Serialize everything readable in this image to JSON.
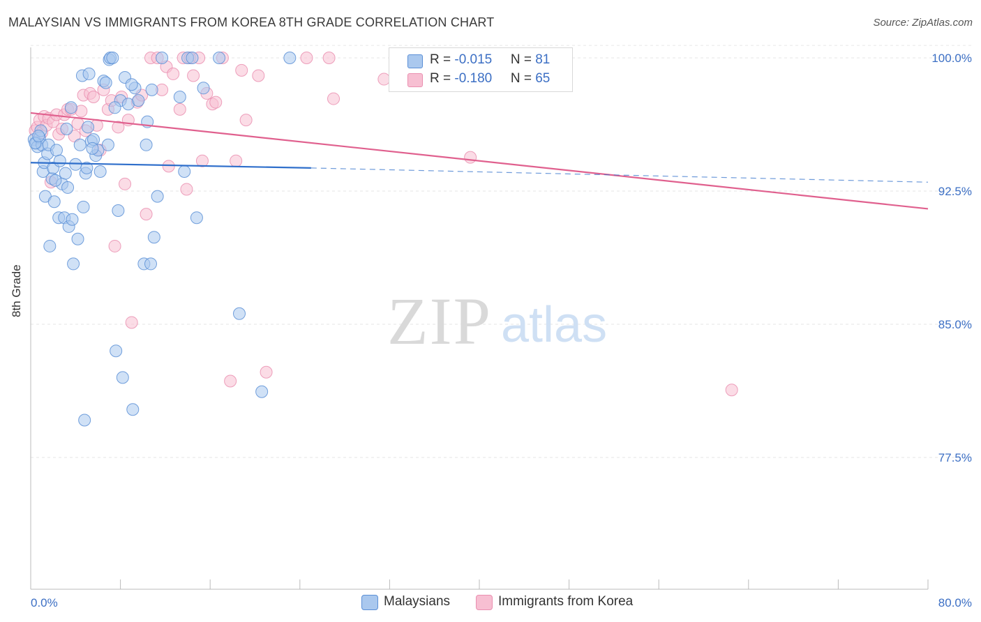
{
  "title": "MALAYSIAN VS IMMIGRANTS FROM KOREA 8TH GRADE CORRELATION CHART",
  "source": "Source: ZipAtlas.com",
  "watermark": {
    "zip": "ZIP",
    "atlas": "atlas"
  },
  "legend": {
    "rows": [
      {
        "r_label": "R = ",
        "r_value": "-0.015",
        "n_label": "N = ",
        "n_value": "81"
      },
      {
        "r_label": "R = ",
        "r_value": "-0.180",
        "n_label": "N = ",
        "n_value": "65"
      }
    ],
    "bottom": [
      "Malaysians",
      "Immigrants from Korea"
    ]
  },
  "colors": {
    "blue_fill": "#aac8ee",
    "blue_stroke": "#5b8fd6",
    "blue_line": "#2f6fcb",
    "pink_fill": "#f7bfd2",
    "pink_stroke": "#ea8fb0",
    "pink_line": "#e0608e",
    "axis_text": "#3c6fc4",
    "grid": "#e6e6e6"
  },
  "chart_data": {
    "type": "scatter",
    "title": "MALAYSIAN VS IMMIGRANTS FROM KOREA 8TH GRADE CORRELATION CHART",
    "xlabel": "",
    "ylabel": "8th Grade",
    "xlim": [
      0,
      80
    ],
    "ylim": [
      71.0,
      101.5
    ],
    "x_tick_labels": [
      "0.0%",
      "80.0%"
    ],
    "y_ticks": [
      77.5,
      85.0,
      92.5,
      100.0
    ],
    "y_tick_labels": [
      "77.5%",
      "85.0%",
      "92.5%",
      "100.0%"
    ],
    "grid": "horizontal dashed",
    "legend_position": "top-center",
    "series": [
      {
        "name": "Malaysians",
        "r": -0.015,
        "n": 81,
        "trend": {
          "x_solid": [
            0,
            25
          ],
          "y_solid": [
            94.1,
            93.8
          ],
          "x_dashed": [
            25,
            80
          ],
          "y_dashed": [
            93.8,
            93.0
          ]
        },
        "points": [
          [
            0.3,
            95.4
          ],
          [
            0.5,
            95.2
          ],
          [
            0.6,
            95.0
          ],
          [
            0.8,
            95.5
          ],
          [
            0.9,
            95.9
          ],
          [
            1.0,
            95.1
          ],
          [
            1.1,
            93.6
          ],
          [
            1.2,
            94.1
          ],
          [
            1.3,
            92.2
          ],
          [
            1.5,
            94.6
          ],
          [
            1.6,
            95.1
          ],
          [
            1.7,
            89.4
          ],
          [
            1.9,
            93.2
          ],
          [
            2.0,
            93.8
          ],
          [
            2.1,
            91.9
          ],
          [
            2.3,
            94.8
          ],
          [
            2.5,
            91.0
          ],
          [
            2.6,
            94.2
          ],
          [
            2.8,
            92.9
          ],
          [
            3.0,
            91.0
          ],
          [
            3.1,
            93.5
          ],
          [
            3.2,
            96.0
          ],
          [
            3.3,
            92.7
          ],
          [
            3.4,
            90.5
          ],
          [
            3.6,
            97.2
          ],
          [
            3.7,
            90.9
          ],
          [
            3.8,
            88.4
          ],
          [
            4.0,
            94.0
          ],
          [
            4.2,
            89.8
          ],
          [
            4.4,
            95.1
          ],
          [
            4.6,
            99.0
          ],
          [
            4.7,
            91.6
          ],
          [
            4.9,
            93.5
          ],
          [
            5.0,
            93.8
          ],
          [
            5.1,
            96.1
          ],
          [
            5.2,
            99.1
          ],
          [
            5.4,
            95.3
          ],
          [
            5.6,
            95.4
          ],
          [
            5.8,
            94.5
          ],
          [
            6.0,
            94.8
          ],
          [
            6.2,
            93.6
          ],
          [
            6.5,
            98.7
          ],
          [
            6.7,
            98.6
          ],
          [
            7.0,
            99.9
          ],
          [
            7.1,
            100.0
          ],
          [
            7.3,
            100.0
          ],
          [
            7.6,
            83.5
          ],
          [
            7.8,
            91.4
          ],
          [
            8.0,
            97.6
          ],
          [
            8.2,
            82.0
          ],
          [
            8.4,
            98.9
          ],
          [
            8.7,
            97.4
          ],
          [
            9.1,
            80.2
          ],
          [
            9.3,
            98.3
          ],
          [
            9.6,
            97.6
          ],
          [
            10.1,
            88.4
          ],
          [
            10.3,
            95.1
          ],
          [
            10.4,
            96.4
          ],
          [
            10.7,
            88.4
          ],
          [
            11.0,
            89.9
          ],
          [
            11.3,
            92.2
          ],
          [
            11.7,
            100.0
          ],
          [
            13.3,
            97.8
          ],
          [
            13.7,
            93.6
          ],
          [
            14.0,
            100.0
          ],
          [
            14.4,
            100.0
          ],
          [
            14.8,
            91.0
          ],
          [
            15.4,
            98.3
          ],
          [
            16.8,
            100.0
          ],
          [
            18.6,
            85.6
          ],
          [
            20.6,
            81.2
          ],
          [
            23.1,
            100.0
          ],
          [
            0.4,
            95.2
          ],
          [
            0.7,
            95.6
          ],
          [
            2.2,
            93.1
          ],
          [
            4.8,
            79.6
          ],
          [
            5.5,
            94.9
          ],
          [
            6.9,
            95.1
          ],
          [
            7.5,
            97.2
          ],
          [
            9.0,
            98.5
          ],
          [
            10.8,
            98.2
          ]
        ]
      },
      {
        "name": "Immigrants from Korea",
        "r": -0.18,
        "n": 65,
        "trend": {
          "x_solid": [
            0,
            80
          ],
          "y_solid": [
            96.9,
            91.5
          ]
        },
        "points": [
          [
            0.4,
            95.9
          ],
          [
            0.6,
            96.1
          ],
          [
            0.8,
            96.5
          ],
          [
            1.0,
            95.8
          ],
          [
            1.2,
            96.7
          ],
          [
            1.4,
            96.2
          ],
          [
            1.6,
            96.6
          ],
          [
            1.8,
            93.0
          ],
          [
            2.0,
            96.4
          ],
          [
            2.3,
            96.8
          ],
          [
            2.5,
            95.7
          ],
          [
            2.8,
            96.0
          ],
          [
            3.0,
            96.8
          ],
          [
            3.3,
            97.1
          ],
          [
            3.6,
            97.1
          ],
          [
            3.9,
            95.6
          ],
          [
            4.2,
            96.3
          ],
          [
            4.5,
            97.0
          ],
          [
            4.7,
            97.9
          ],
          [
            4.9,
            95.9
          ],
          [
            5.3,
            98.0
          ],
          [
            5.6,
            97.8
          ],
          [
            5.9,
            96.2
          ],
          [
            6.2,
            94.8
          ],
          [
            6.5,
            98.2
          ],
          [
            6.9,
            97.1
          ],
          [
            7.2,
            97.6
          ],
          [
            7.5,
            89.4
          ],
          [
            7.8,
            96.1
          ],
          [
            8.1,
            97.8
          ],
          [
            8.4,
            92.9
          ],
          [
            8.7,
            96.5
          ],
          [
            9.0,
            85.1
          ],
          [
            9.5,
            97.5
          ],
          [
            9.9,
            97.9
          ],
          [
            10.3,
            91.2
          ],
          [
            10.7,
            100.0
          ],
          [
            11.3,
            100.0
          ],
          [
            11.7,
            98.2
          ],
          [
            12.1,
            99.5
          ],
          [
            12.3,
            93.9
          ],
          [
            12.7,
            99.1
          ],
          [
            13.3,
            97.1
          ],
          [
            13.6,
            100.0
          ],
          [
            13.9,
            92.6
          ],
          [
            14.2,
            100.0
          ],
          [
            14.5,
            99.0
          ],
          [
            15.0,
            100.0
          ],
          [
            15.3,
            94.2
          ],
          [
            15.7,
            98.0
          ],
          [
            16.2,
            97.4
          ],
          [
            16.5,
            97.5
          ],
          [
            17.1,
            100.0
          ],
          [
            17.8,
            81.8
          ],
          [
            18.3,
            94.2
          ],
          [
            18.8,
            99.3
          ],
          [
            19.2,
            96.5
          ],
          [
            20.3,
            99.0
          ],
          [
            21.0,
            82.3
          ],
          [
            24.6,
            100.0
          ],
          [
            26.6,
            100.0
          ],
          [
            27.0,
            97.7
          ],
          [
            31.5,
            98.8
          ],
          [
            39.2,
            94.4
          ],
          [
            62.5,
            81.3
          ]
        ]
      }
    ]
  }
}
